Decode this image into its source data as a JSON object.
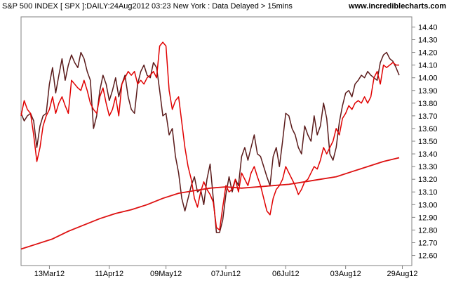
{
  "header": {
    "title": "S&P 500 INDEX [ SPX ]:DAILY:24Aug2012 03:23 New York : Data Delayed > 15mins",
    "source": "www.incrediblecharts.com"
  },
  "colors": {
    "series_dark": "#5a1a1a",
    "series_red": "#e00000",
    "ma": "#dd1111"
  },
  "chart_data": {
    "type": "line",
    "x_ticks": [
      {
        "label": "13Mar12",
        "idx": 9
      },
      {
        "label": "11Apr12",
        "idx": 28
      },
      {
        "label": "09May12",
        "idx": 46
      },
      {
        "label": "07Jun12",
        "idx": 65
      },
      {
        "label": "06Jul12",
        "idx": 84
      },
      {
        "label": "03Aug12",
        "idx": 103
      },
      {
        "label": "29Aug12",
        "idx": 121
      }
    ],
    "y_ticks": [
      12.6,
      12.7,
      12.8,
      12.9,
      13.0,
      13.1,
      13.2,
      13.3,
      13.4,
      13.5,
      13.6,
      13.7,
      13.8,
      13.9,
      14.0,
      14.1,
      14.2,
      14.3,
      14.4
    ],
    "ylim": [
      12.52,
      14.48
    ],
    "xlim": [
      0,
      124
    ],
    "series": [
      {
        "name": "",
        "color": "#5a1a1a",
        "points": [
          [
            0,
            13.72
          ],
          [
            1,
            13.66
          ],
          [
            2,
            13.7
          ],
          [
            3,
            13.72
          ],
          [
            4,
            13.66
          ],
          [
            5,
            13.45
          ],
          [
            6,
            13.62
          ],
          [
            7,
            13.7
          ],
          [
            8,
            13.72
          ],
          [
            9,
            13.95
          ],
          [
            10,
            14.08
          ],
          [
            11,
            13.88
          ],
          [
            12,
            14.02
          ],
          [
            13,
            14.15
          ],
          [
            14,
            13.98
          ],
          [
            15,
            14.1
          ],
          [
            16,
            14.18
          ],
          [
            17,
            14.12
          ],
          [
            18,
            14.08
          ],
          [
            19,
            14.2
          ],
          [
            20,
            14.15
          ],
          [
            21,
            14.05
          ],
          [
            22,
            13.98
          ],
          [
            23,
            13.6
          ],
          [
            24,
            13.7
          ],
          [
            25,
            13.9
          ],
          [
            26,
            14.02
          ],
          [
            27,
            13.95
          ],
          [
            28,
            13.82
          ],
          [
            29,
            13.9
          ],
          [
            30,
            14.0
          ],
          [
            31,
            13.85
          ],
          [
            32,
            13.95
          ],
          [
            33,
            14.02
          ],
          [
            34,
            13.85
          ],
          [
            35,
            13.75
          ],
          [
            36,
            13.72
          ],
          [
            37,
            13.95
          ],
          [
            38,
            14.05
          ],
          [
            39,
            14.1
          ],
          [
            40,
            14.02
          ],
          [
            41,
            14.0
          ],
          [
            42,
            14.12
          ],
          [
            43,
            14.08
          ],
          [
            44,
            13.9
          ],
          [
            45,
            13.7
          ],
          [
            46,
            13.72
          ],
          [
            47,
            13.55
          ],
          [
            48,
            13.6
          ],
          [
            49,
            13.38
          ],
          [
            50,
            13.25
          ],
          [
            51,
            13.05
          ],
          [
            52,
            12.95
          ],
          [
            53,
            13.05
          ],
          [
            54,
            13.15
          ],
          [
            55,
            13.22
          ],
          [
            56,
            13.1
          ],
          [
            57,
            13.12
          ],
          [
            58,
            13.0
          ],
          [
            59,
            13.2
          ],
          [
            60,
            13.32
          ],
          [
            61,
            13.05
          ],
          [
            62,
            12.78
          ],
          [
            63,
            12.78
          ],
          [
            64,
            12.88
          ],
          [
            65,
            13.08
          ],
          [
            66,
            13.22
          ],
          [
            67,
            13.1
          ],
          [
            68,
            13.2
          ],
          [
            69,
            13.15
          ],
          [
            70,
            13.38
          ],
          [
            71,
            13.45
          ],
          [
            72,
            13.35
          ],
          [
            73,
            13.45
          ],
          [
            74,
            13.55
          ],
          [
            75,
            13.4
          ],
          [
            76,
            13.38
          ],
          [
            77,
            13.3
          ],
          [
            78,
            13.22
          ],
          [
            79,
            13.15
          ],
          [
            80,
            13.38
          ],
          [
            81,
            13.45
          ],
          [
            82,
            13.3
          ],
          [
            83,
            13.5
          ],
          [
            84,
            13.72
          ],
          [
            85,
            13.7
          ],
          [
            86,
            13.6
          ],
          [
            87,
            13.55
          ],
          [
            88,
            13.45
          ],
          [
            89,
            13.4
          ],
          [
            90,
            13.62
          ],
          [
            91,
            13.55
          ],
          [
            92,
            13.5
          ],
          [
            93,
            13.7
          ],
          [
            94,
            13.55
          ],
          [
            95,
            13.62
          ],
          [
            96,
            13.8
          ],
          [
            97,
            13.68
          ],
          [
            98,
            13.4
          ],
          [
            99,
            13.35
          ],
          [
            100,
            13.45
          ],
          [
            101,
            13.65
          ],
          [
            102,
            13.78
          ],
          [
            103,
            13.88
          ],
          [
            104,
            13.9
          ],
          [
            105,
            13.85
          ],
          [
            106,
            13.95
          ],
          [
            107,
            13.98
          ],
          [
            108,
            14.02
          ],
          [
            109,
            14.0
          ],
          [
            110,
            14.05
          ],
          [
            111,
            14.02
          ],
          [
            112,
            14.0
          ],
          [
            113,
            13.98
          ],
          [
            114,
            14.12
          ],
          [
            115,
            14.18
          ],
          [
            116,
            14.2
          ],
          [
            117,
            14.15
          ],
          [
            118,
            14.13
          ],
          [
            119,
            14.08
          ],
          [
            120,
            14.02
          ]
        ]
      },
      {
        "name": "",
        "color": "#e00000",
        "points": [
          [
            0,
            13.7
          ],
          [
            1,
            13.82
          ],
          [
            2,
            13.75
          ],
          [
            3,
            13.72
          ],
          [
            4,
            13.55
          ],
          [
            5,
            13.34
          ],
          [
            6,
            13.45
          ],
          [
            7,
            13.62
          ],
          [
            8,
            13.7
          ],
          [
            9,
            13.75
          ],
          [
            10,
            13.85
          ],
          [
            11,
            13.72
          ],
          [
            12,
            13.8
          ],
          [
            13,
            13.85
          ],
          [
            14,
            13.78
          ],
          [
            15,
            13.72
          ],
          [
            16,
            13.98
          ],
          [
            17,
            13.95
          ],
          [
            18,
            13.92
          ],
          [
            19,
            13.9
          ],
          [
            20,
            13.98
          ],
          [
            21,
            13.9
          ],
          [
            22,
            13.8
          ],
          [
            23,
            13.75
          ],
          [
            24,
            13.72
          ],
          [
            25,
            13.85
          ],
          [
            26,
            13.92
          ],
          [
            27,
            13.8
          ],
          [
            28,
            13.7
          ],
          [
            29,
            13.75
          ],
          [
            30,
            13.85
          ],
          [
            31,
            13.7
          ],
          [
            32,
            13.95
          ],
          [
            33,
            14.0
          ],
          [
            34,
            14.05
          ],
          [
            35,
            14.02
          ],
          [
            36,
            14.05
          ],
          [
            37,
            13.95
          ],
          [
            38,
            13.98
          ],
          [
            39,
            13.95
          ],
          [
            40,
            14.0
          ],
          [
            41,
            14.02
          ],
          [
            42,
            14.05
          ],
          [
            43,
            14.0
          ],
          [
            44,
            14.25
          ],
          [
            45,
            14.28
          ],
          [
            46,
            14.25
          ],
          [
            47,
            13.9
          ],
          [
            48,
            13.75
          ],
          [
            49,
            13.82
          ],
          [
            50,
            13.85
          ],
          [
            51,
            13.65
          ],
          [
            52,
            13.45
          ],
          [
            53,
            13.3
          ],
          [
            54,
            13.2
          ],
          [
            55,
            13.05
          ],
          [
            56,
            12.98
          ],
          [
            57,
            13.1
          ],
          [
            58,
            13.18
          ],
          [
            59,
            13.12
          ],
          [
            60,
            13.08
          ],
          [
            61,
            13.02
          ],
          [
            62,
            12.82
          ],
          [
            63,
            12.8
          ],
          [
            64,
            12.98
          ],
          [
            65,
            13.15
          ],
          [
            66,
            13.1
          ],
          [
            67,
            13.12
          ],
          [
            68,
            13.2
          ],
          [
            69,
            13.1
          ],
          [
            70,
            13.25
          ],
          [
            71,
            13.2
          ],
          [
            72,
            13.15
          ],
          [
            73,
            13.25
          ],
          [
            74,
            13.3
          ],
          [
            75,
            13.22
          ],
          [
            76,
            13.15
          ],
          [
            77,
            13.05
          ],
          [
            78,
            12.95
          ],
          [
            79,
            12.92
          ],
          [
            80,
            13.05
          ],
          [
            81,
            13.12
          ],
          [
            82,
            13.15
          ],
          [
            83,
            13.2
          ],
          [
            84,
            13.3
          ],
          [
            85,
            13.25
          ],
          [
            86,
            13.2
          ],
          [
            87,
            13.15
          ],
          [
            88,
            13.08
          ],
          [
            89,
            13.12
          ],
          [
            90,
            13.18
          ],
          [
            91,
            13.2
          ],
          [
            92,
            13.25
          ],
          [
            93,
            13.3
          ],
          [
            94,
            13.28
          ],
          [
            95,
            13.35
          ],
          [
            96,
            13.45
          ],
          [
            97,
            13.4
          ],
          [
            98,
            13.45
          ],
          [
            99,
            13.5
          ],
          [
            100,
            13.6
          ],
          [
            101,
            13.55
          ],
          [
            102,
            13.68
          ],
          [
            103,
            13.72
          ],
          [
            104,
            13.78
          ],
          [
            105,
            13.75
          ],
          [
            106,
            13.8
          ],
          [
            107,
            13.82
          ],
          [
            108,
            13.8
          ],
          [
            109,
            13.85
          ],
          [
            110,
            13.8
          ],
          [
            111,
            13.85
          ],
          [
            112,
            14.0
          ],
          [
            113,
            14.05
          ],
          [
            114,
            13.95
          ],
          [
            115,
            14.1
          ],
          [
            116,
            14.08
          ],
          [
            117,
            14.1
          ],
          [
            118,
            14.12
          ],
          [
            119,
            14.1
          ],
          [
            120,
            14.1
          ]
        ]
      },
      {
        "name": "",
        "color": "#dd1111",
        "points": [
          [
            0,
            12.65
          ],
          [
            5,
            12.69
          ],
          [
            10,
            12.73
          ],
          [
            15,
            12.79
          ],
          [
            20,
            12.84
          ],
          [
            25,
            12.89
          ],
          [
            30,
            12.93
          ],
          [
            35,
            12.96
          ],
          [
            40,
            13.0
          ],
          [
            45,
            13.05
          ],
          [
            50,
            13.09
          ],
          [
            55,
            13.11
          ],
          [
            60,
            13.13
          ],
          [
            65,
            13.14
          ],
          [
            70,
            13.13
          ],
          [
            75,
            13.14
          ],
          [
            80,
            13.15
          ],
          [
            85,
            13.16
          ],
          [
            90,
            13.18
          ],
          [
            95,
            13.2
          ],
          [
            100,
            13.22
          ],
          [
            105,
            13.26
          ],
          [
            110,
            13.3
          ],
          [
            115,
            13.34
          ],
          [
            120,
            13.37
          ]
        ]
      }
    ]
  }
}
